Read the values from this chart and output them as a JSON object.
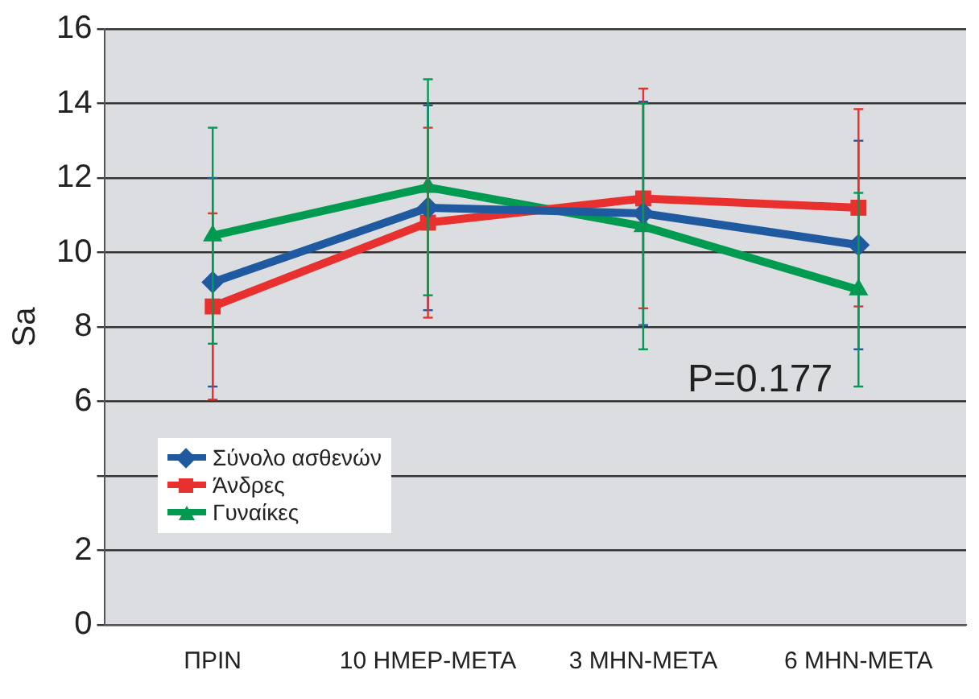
{
  "chart_data": {
    "type": "line",
    "ylabel": "Sa",
    "categories": [
      "ΠΡΙΝ",
      "10 ΗΜΕΡ-ΜΕΤΑ",
      "3 ΜΗΝ-ΜΕΤΑ",
      "6 ΜΗΝ-ΜΕΤΑ"
    ],
    "series": [
      {
        "name": "Σύνολο ασθενών",
        "color": "#1f5aa0",
        "marker": "diamond",
        "values": [
          9.2,
          11.2,
          11.05,
          10.2
        ],
        "errors": [
          2.8,
          2.75,
          3.0,
          2.8
        ]
      },
      {
        "name": "Άνδρες",
        "color": "#e8302f",
        "marker": "square",
        "values": [
          8.55,
          10.8,
          11.45,
          11.2
        ],
        "errors": [
          2.5,
          2.55,
          2.95,
          2.65
        ]
      },
      {
        "name": "Γυναίκες",
        "color": "#009a50",
        "marker": "triangle",
        "values": [
          10.45,
          11.75,
          10.7,
          9.0
        ],
        "errors": [
          2.9,
          2.9,
          3.3,
          2.6
        ]
      }
    ],
    "ylim": [
      0,
      16
    ],
    "yticks": [
      0,
      2,
      {
        "value": 4,
        "label": null
      },
      6,
      8,
      10,
      12,
      14,
      16
    ],
    "grid": "y",
    "legend": "left",
    "line_style": "solid",
    "annotations": [
      "P=0.177"
    ]
  }
}
